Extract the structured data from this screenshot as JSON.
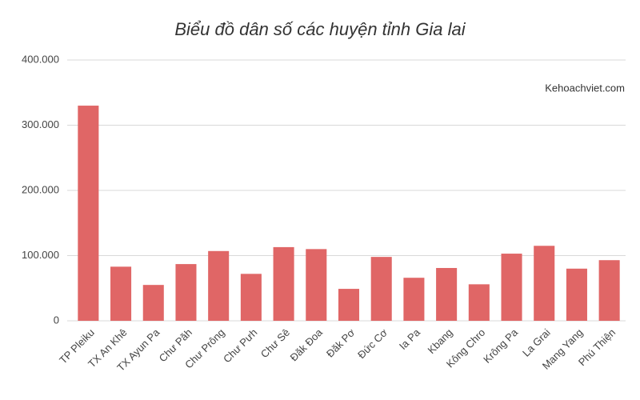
{
  "chart_data": {
    "type": "bar",
    "title": "Biểu đồ dân số các huyện tỉnh Gia lai",
    "annotation": "Kehoachviet.com",
    "categories": [
      "TP Pleiku",
      "TX An Khê",
      "TX Ayun Pa",
      "Chư Păh",
      "Chư Prông",
      "Chư Pưh",
      "Chư Sê",
      "Đăk Đoa",
      "Đăk Pơ",
      "Đức Cơ",
      "Ia Pa",
      "Kbang",
      "Kông Chro",
      "Krông Pa",
      "La Grai",
      "Mang Yang",
      "Phú Thiện"
    ],
    "values": [
      330000,
      83000,
      55000,
      87000,
      107000,
      72000,
      113000,
      110000,
      49000,
      98000,
      66000,
      81000,
      56000,
      103000,
      115000,
      80000,
      93000
    ],
    "color": "#e06666",
    "ylim": [
      0,
      400000
    ],
    "yticks": [
      0,
      {
        "value": 100000,
        "label": "100.000"
      },
      {
        "value": 200000,
        "label": "200.000"
      },
      {
        "value": 300000,
        "label": "300.000"
      },
      {
        "value": 400000,
        "label": "400.000"
      }
    ],
    "grid": true
  }
}
